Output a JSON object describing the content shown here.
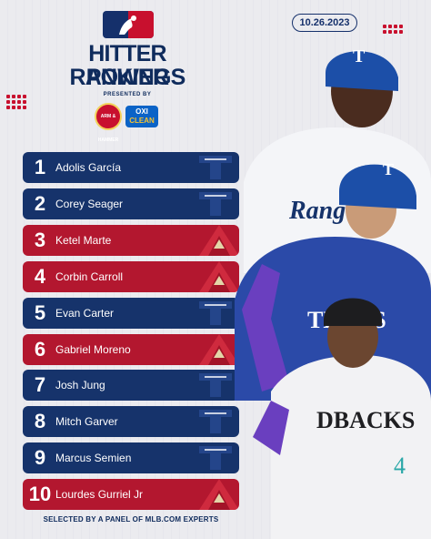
{
  "header": {
    "logo_icon": "mlb-logo-icon",
    "date": "10.26.2023",
    "title_line1": "HITTER POWER",
    "title_line2": "RANKINGS",
    "presented_by": "PRESENTED BY",
    "sponsor1_text": "ARM & HAMMER",
    "sponsor2_line1": "OXI",
    "sponsor2_line2": "CLEAN"
  },
  "rankings": [
    {
      "rank": "1",
      "name": "Adolis García",
      "team_logo": "rangers-logo-icon",
      "color": "#16336b"
    },
    {
      "rank": "2",
      "name": "Corey Seager",
      "team_logo": "rangers-logo-icon",
      "color": "#16336b"
    },
    {
      "rank": "3",
      "name": "Ketel Marte",
      "team_logo": "diamondbacks-logo-icon",
      "color": "#b3172f"
    },
    {
      "rank": "4",
      "name": "Corbin Carroll",
      "team_logo": "diamondbacks-logo-icon",
      "color": "#b3172f"
    },
    {
      "rank": "5",
      "name": "Evan Carter",
      "team_logo": "rangers-logo-icon",
      "color": "#16336b"
    },
    {
      "rank": "6",
      "name": "Gabriel Moreno",
      "team_logo": "diamondbacks-logo-icon",
      "color": "#b3172f"
    },
    {
      "rank": "7",
      "name": "Josh Jung",
      "team_logo": "rangers-logo-icon",
      "color": "#16336b"
    },
    {
      "rank": "8",
      "name": "Mitch Garver",
      "team_logo": "rangers-logo-icon",
      "color": "#16336b"
    },
    {
      "rank": "9",
      "name": "Marcus Semien",
      "team_logo": "rangers-logo-icon",
      "color": "#16336b"
    },
    {
      "rank": "10",
      "name": "Lourdes Gurriel Jr",
      "team_logo": "diamondbacks-logo-icon",
      "color": "#b3172f"
    }
  ],
  "players_image": {
    "rangers_jersey_text": "Rangers",
    "texas_jersey_text": "TEXAS",
    "dbacks_jersey_text": "DBACKS",
    "dbacks_number": "4"
  },
  "footer": "SELECTED BY A PANEL OF MLB.COM EXPERTS"
}
